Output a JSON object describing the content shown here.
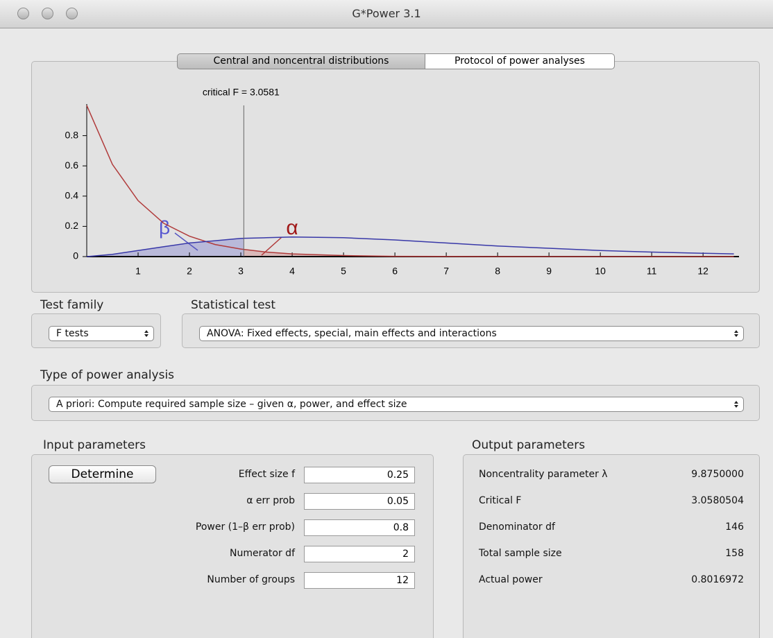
{
  "window": {
    "title": "G*Power 3.1"
  },
  "tabs": [
    "Central and noncentral distributions",
    "Protocol of power analyses"
  ],
  "chart_data": {
    "type": "line",
    "x": [
      0,
      0.5,
      1,
      1.5,
      2,
      2.5,
      3,
      3.5,
      4,
      5,
      6,
      7,
      8,
      9,
      10,
      11,
      12,
      12.6
    ],
    "series": [
      {
        "color": "#b03a3a",
        "values": [
          1,
          0.61,
          0.37,
          0.22,
          0.135,
          0.08,
          0.05,
          0.03,
          0.018,
          0.007,
          0.002,
          0.001,
          0,
          0,
          0,
          0,
          0,
          0
        ]
      },
      {
        "color": "#3838a8",
        "values": [
          0,
          0.015,
          0.04,
          0.065,
          0.09,
          0.105,
          0.12,
          0.125,
          0.13,
          0.125,
          0.11,
          0.09,
          0.07,
          0.055,
          0.04,
          0.03,
          0.022,
          0.018
        ]
      }
    ],
    "xlim": [
      0,
      12.7
    ],
    "ylim": [
      0,
      1
    ],
    "xticks": [
      1,
      2,
      3,
      4,
      5,
      6,
      7,
      8,
      9,
      10,
      11,
      12
    ],
    "yticks": [
      0,
      0.2,
      0.4,
      0.6,
      0.8
    ],
    "critical": {
      "value": 3.0581,
      "label": "critical F = 3.0581"
    },
    "annotations": [
      "β",
      "α"
    ]
  },
  "test_family": {
    "label": "Test family",
    "value": "F tests"
  },
  "statistical_test": {
    "label": "Statistical test",
    "value": "ANOVA: Fixed effects, special, main effects and interactions"
  },
  "power_analysis": {
    "label": "Type of power analysis",
    "value": "A priori: Compute required sample size – given α, power, and effect size"
  },
  "input_parameters": {
    "title": "Input parameters",
    "button": "Determine",
    "rows": [
      [
        "Effect size f",
        "0.25"
      ],
      [
        "α err prob",
        "0.05"
      ],
      [
        "Power (1–β err prob)",
        "0.8"
      ],
      [
        "Numerator df",
        "2"
      ],
      [
        "Number of groups",
        "12"
      ]
    ]
  },
  "output_parameters": {
    "title": "Output parameters",
    "rows": [
      [
        "Noncentrality parameter λ",
        "9.8750000"
      ],
      [
        "Critical F",
        "3.0580504"
      ],
      [
        "Denominator df",
        "146"
      ],
      [
        "Total sample size",
        "158"
      ],
      [
        "Actual power",
        "0.8016972"
      ]
    ]
  }
}
